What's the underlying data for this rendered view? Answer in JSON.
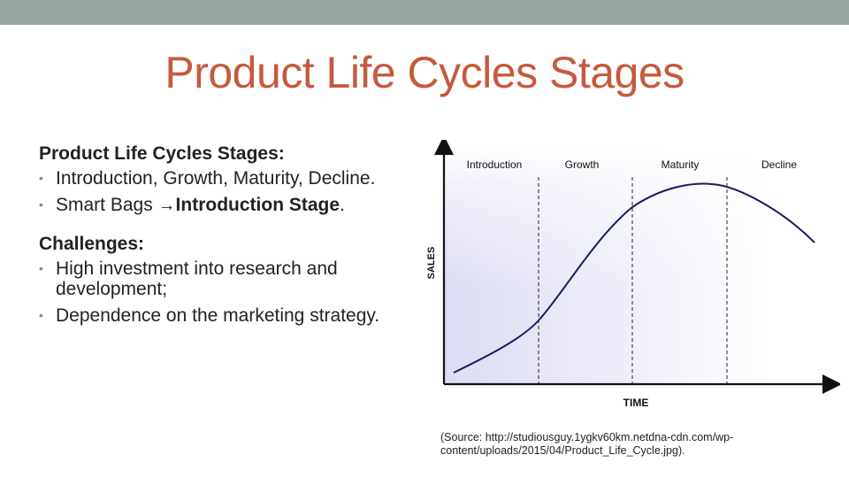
{
  "slide": {
    "title": "Product Life Cycles Stages",
    "sections": [
      {
        "heading": "Product Life Cycles Stages:",
        "bullets": [
          {
            "text": "Introduction, Growth, Maturity, Decline."
          },
          {
            "prefix": "Smart Bags ",
            "arrow": "→",
            "bold": "Introduction Stage",
            "suffix": "."
          }
        ]
      },
      {
        "heading": "Challenges:",
        "bullets": [
          {
            "text": "High investment into research and development;"
          },
          {
            "text": "Dependence on the marketing strategy."
          }
        ]
      }
    ],
    "source": "(Source: http://studiousguy.1ygkv60km.netdna-cdn.com/wp-content/uploads/2015/04/Product_Life_Cycle.jpg)."
  },
  "chart_data": {
    "type": "line",
    "xlabel": "TIME",
    "ylabel": "SALES",
    "stages": [
      "Introduction",
      "Growth",
      "Maturity",
      "Decline"
    ],
    "colors": {
      "curve": "#1a1a5e",
      "axis": "#111111",
      "shade": "#dcdcf3"
    }
  }
}
